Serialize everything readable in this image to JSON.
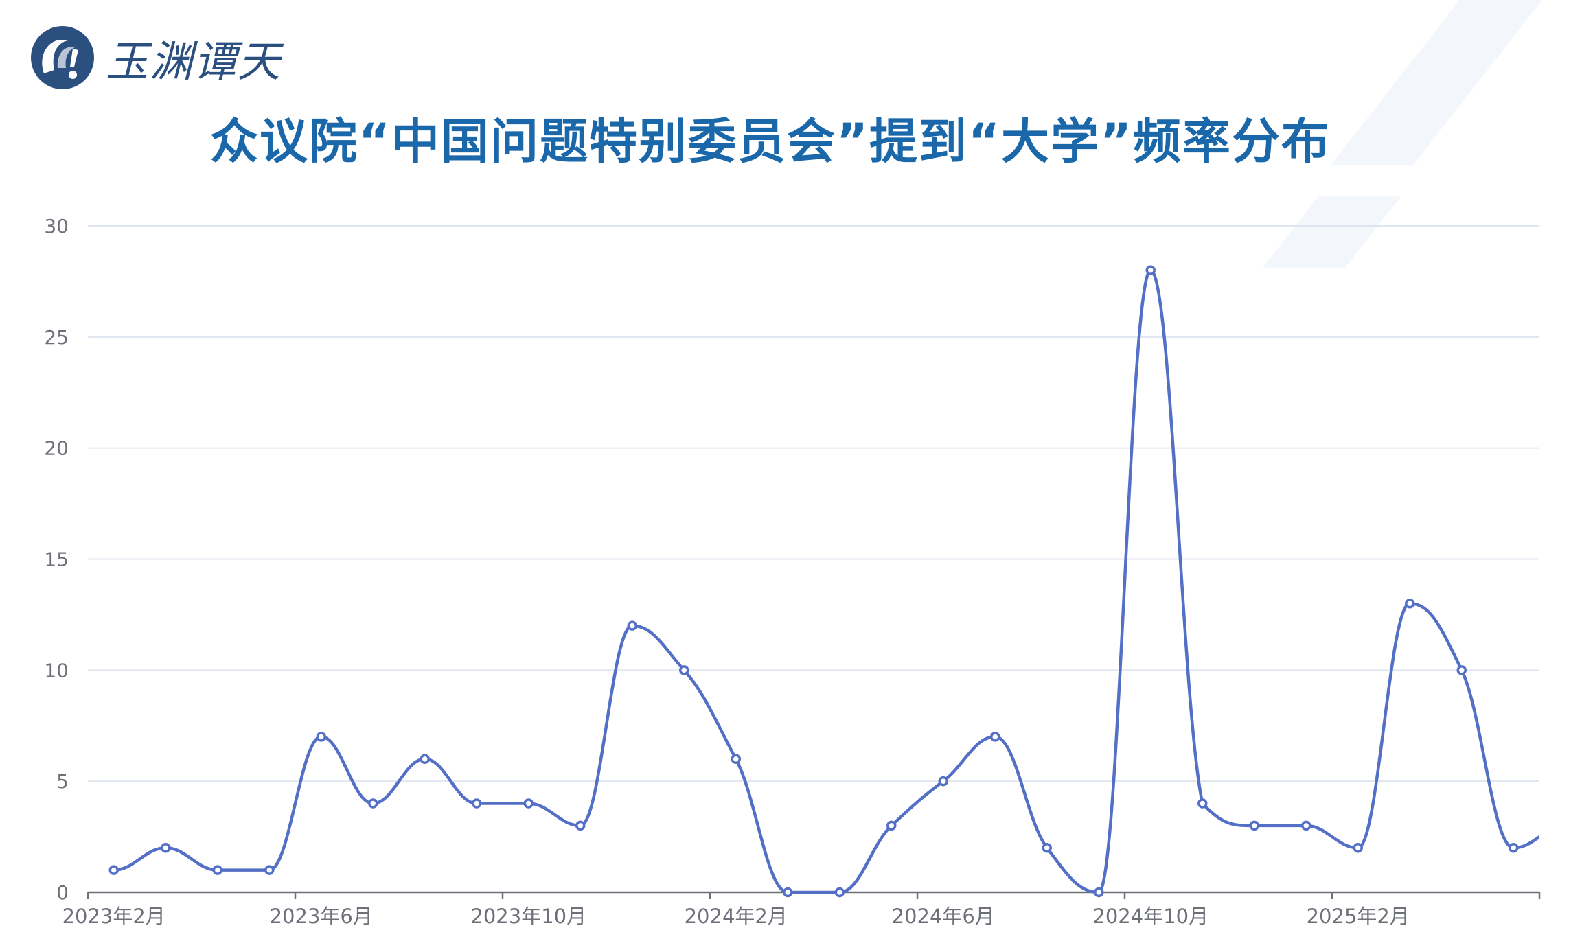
{
  "logo": {
    "text": "玉渊谭天"
  },
  "title": "众议院“中国问题特别委员会”提到“大学”频率分布",
  "colors": {
    "series": "#5470c6",
    "title": "#1a67aa",
    "grid": "#e0e6f1",
    "axis": "#6e7079",
    "logo": "#2b4f7e"
  },
  "chart_data": {
    "type": "line",
    "smooth": true,
    "title": "众议院“中国问题特别委员会”提到“大学”频率分布",
    "xlabel": "",
    "ylabel": "",
    "ylim": [
      0,
      30
    ],
    "yticks": [
      "0",
      "5",
      "10",
      "15",
      "20",
      "25",
      "30"
    ],
    "grid": "horizontal",
    "x_tick_labels": [
      "2023年2月",
      "2023年6月",
      "2023年10月",
      "2024年2月",
      "2024年6月",
      "2024年10月",
      "2025年2月"
    ],
    "categories": [
      "2023-02",
      "2023-03",
      "2023-04",
      "2023-05",
      "2023-06",
      "2023-07",
      "2023-08",
      "2023-09",
      "2023-10",
      "2023-11",
      "2023-12",
      "2024-01",
      "2024-02",
      "2024-03",
      "2024-04",
      "2024-05",
      "2024-06",
      "2024-07",
      "2024-08",
      "2024-09",
      "2024-10",
      "2024-11",
      "2024-12",
      "2025-01",
      "2025-02",
      "2025-03",
      "2025-04",
      "2025-05",
      "2025-06"
    ],
    "values": [
      1,
      2,
      1,
      1,
      7,
      4,
      6,
      4,
      4,
      3,
      12,
      10,
      6,
      0,
      0,
      3,
      5,
      7,
      2,
      0,
      28,
      4,
      3,
      3,
      2,
      13,
      10,
      2,
      3
    ]
  }
}
